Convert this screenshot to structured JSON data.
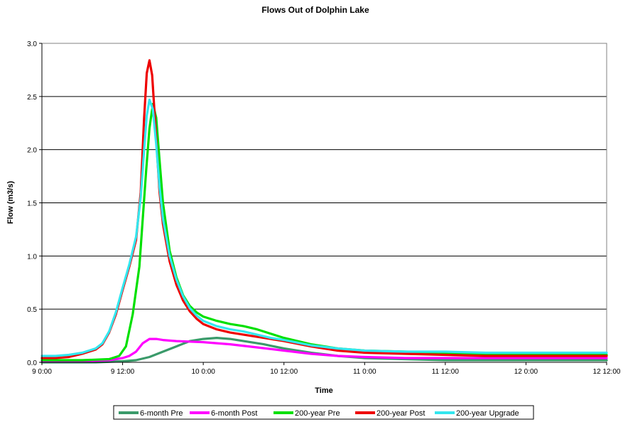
{
  "chart_data": {
    "type": "line",
    "title": "Flows Out of Dolphin Lake",
    "xlabel": "Time",
    "ylabel": "Flow (m3/s)",
    "x_unit": "hours",
    "xlim": [
      0,
      72
    ],
    "ylim": [
      0,
      3.0
    ],
    "x_ticks": [
      {
        "x": 0,
        "label": "9 0:00"
      },
      {
        "x": 12,
        "label": "9 12:00"
      },
      {
        "x": 24,
        "label": "10 0:00"
      },
      {
        "x": 36,
        "label": "10 12:00"
      },
      {
        "x": 48,
        "label": "11 0:00"
      },
      {
        "x": 60,
        "label": "11 12:00"
      },
      {
        "x": 72,
        "label": "12 0:00"
      },
      {
        "x": 84,
        "label": "12 12:00"
      }
    ],
    "y_ticks": [
      {
        "y": 0.0,
        "label": "0.0"
      },
      {
        "y": 0.5,
        "label": "0.5"
      },
      {
        "y": 1.0,
        "label": "1.0"
      },
      {
        "y": 1.5,
        "label": "1.5"
      },
      {
        "y": 2.0,
        "label": "2.0"
      },
      {
        "y": 2.5,
        "label": "2.5"
      },
      {
        "y": 3.0,
        "label": "3.0"
      }
    ],
    "grid": "horizontal",
    "legend_position": "bottom",
    "series": [
      {
        "name": "6-month Pre",
        "color": "#3a9a6a",
        "points": [
          [
            0,
            0.0
          ],
          [
            8,
            0.0
          ],
          [
            12,
            0.01
          ],
          [
            14,
            0.02
          ],
          [
            16,
            0.05
          ],
          [
            18,
            0.1
          ],
          [
            20,
            0.15
          ],
          [
            22,
            0.2
          ],
          [
            24,
            0.22
          ],
          [
            26,
            0.23
          ],
          [
            28,
            0.22
          ],
          [
            30,
            0.2
          ],
          [
            33,
            0.17
          ],
          [
            36,
            0.13
          ],
          [
            40,
            0.09
          ],
          [
            44,
            0.06
          ],
          [
            48,
            0.04
          ],
          [
            54,
            0.03
          ],
          [
            60,
            0.02
          ],
          [
            66,
            0.02
          ],
          [
            72,
            0.02
          ],
          [
            84,
            0.02
          ]
        ]
      },
      {
        "name": "6-month Post",
        "color": "#ff00ff",
        "points": [
          [
            0,
            0.01
          ],
          [
            6,
            0.01
          ],
          [
            10,
            0.02
          ],
          [
            12,
            0.04
          ],
          [
            13,
            0.06
          ],
          [
            14,
            0.1
          ],
          [
            15,
            0.18
          ],
          [
            16,
            0.22
          ],
          [
            17,
            0.22
          ],
          [
            18,
            0.21
          ],
          [
            20,
            0.2
          ],
          [
            24,
            0.19
          ],
          [
            28,
            0.17
          ],
          [
            32,
            0.14
          ],
          [
            36,
            0.11
          ],
          [
            40,
            0.08
          ],
          [
            44,
            0.06
          ],
          [
            48,
            0.05
          ],
          [
            54,
            0.04
          ],
          [
            60,
            0.04
          ],
          [
            66,
            0.04
          ],
          [
            72,
            0.04
          ],
          [
            84,
            0.04
          ]
        ]
      },
      {
        "name": "200-year Pre",
        "color": "#00e000",
        "points": [
          [
            0,
            0.02
          ],
          [
            6,
            0.02
          ],
          [
            10,
            0.03
          ],
          [
            11.5,
            0.06
          ],
          [
            12.5,
            0.15
          ],
          [
            13.5,
            0.45
          ],
          [
            14.5,
            0.9
          ],
          [
            15.5,
            1.8
          ],
          [
            16,
            2.2
          ],
          [
            16.5,
            2.43
          ],
          [
            17,
            2.3
          ],
          [
            17.5,
            1.9
          ],
          [
            18,
            1.5
          ],
          [
            19,
            1.05
          ],
          [
            20,
            0.8
          ],
          [
            21,
            0.63
          ],
          [
            22,
            0.53
          ],
          [
            23,
            0.47
          ],
          [
            24,
            0.43
          ],
          [
            26,
            0.39
          ],
          [
            28,
            0.36
          ],
          [
            30,
            0.34
          ],
          [
            32,
            0.31
          ],
          [
            34,
            0.27
          ],
          [
            36,
            0.23
          ],
          [
            40,
            0.17
          ],
          [
            44,
            0.13
          ],
          [
            48,
            0.11
          ],
          [
            54,
            0.1
          ],
          [
            60,
            0.09
          ],
          [
            66,
            0.08
          ],
          [
            72,
            0.07
          ],
          [
            84,
            0.07
          ]
        ]
      },
      {
        "name": "200-year Post",
        "color": "#ee0000",
        "points": [
          [
            0,
            0.04
          ],
          [
            2,
            0.04
          ],
          [
            4,
            0.05
          ],
          [
            6,
            0.08
          ],
          [
            8,
            0.12
          ],
          [
            9,
            0.17
          ],
          [
            10,
            0.28
          ],
          [
            11,
            0.45
          ],
          [
            12,
            0.68
          ],
          [
            13,
            0.9
          ],
          [
            14,
            1.15
          ],
          [
            14.7,
            1.6
          ],
          [
            15.2,
            2.3
          ],
          [
            15.6,
            2.72
          ],
          [
            16,
            2.84
          ],
          [
            16.4,
            2.7
          ],
          [
            17,
            2.1
          ],
          [
            17.5,
            1.6
          ],
          [
            18,
            1.3
          ],
          [
            19,
            0.95
          ],
          [
            20,
            0.73
          ],
          [
            21,
            0.58
          ],
          [
            22,
            0.48
          ],
          [
            23,
            0.41
          ],
          [
            24,
            0.36
          ],
          [
            26,
            0.31
          ],
          [
            28,
            0.28
          ],
          [
            30,
            0.26
          ],
          [
            32,
            0.24
          ],
          [
            34,
            0.22
          ],
          [
            36,
            0.2
          ],
          [
            40,
            0.15
          ],
          [
            44,
            0.11
          ],
          [
            48,
            0.09
          ],
          [
            54,
            0.08
          ],
          [
            60,
            0.07
          ],
          [
            66,
            0.06
          ],
          [
            72,
            0.06
          ],
          [
            84,
            0.06
          ]
        ]
      },
      {
        "name": "200-year Upgrade",
        "color": "#33e6ee",
        "points": [
          [
            0,
            0.06
          ],
          [
            2,
            0.06
          ],
          [
            4,
            0.07
          ],
          [
            6,
            0.09
          ],
          [
            8,
            0.13
          ],
          [
            9,
            0.18
          ],
          [
            10,
            0.29
          ],
          [
            11,
            0.47
          ],
          [
            12,
            0.7
          ],
          [
            13,
            0.92
          ],
          [
            14,
            1.18
          ],
          [
            14.7,
            1.55
          ],
          [
            15.2,
            2.0
          ],
          [
            15.6,
            2.32
          ],
          [
            16,
            2.47
          ],
          [
            16.5,
            2.38
          ],
          [
            17,
            2.05
          ],
          [
            17.5,
            1.65
          ],
          [
            18,
            1.35
          ],
          [
            19,
            1.0
          ],
          [
            20,
            0.78
          ],
          [
            21,
            0.62
          ],
          [
            22,
            0.51
          ],
          [
            23,
            0.44
          ],
          [
            24,
            0.39
          ],
          [
            26,
            0.34
          ],
          [
            28,
            0.31
          ],
          [
            30,
            0.29
          ],
          [
            32,
            0.26
          ],
          [
            34,
            0.23
          ],
          [
            36,
            0.21
          ],
          [
            40,
            0.16
          ],
          [
            44,
            0.13
          ],
          [
            48,
            0.11
          ],
          [
            54,
            0.1
          ],
          [
            60,
            0.1
          ],
          [
            66,
            0.09
          ],
          [
            72,
            0.09
          ],
          [
            84,
            0.09
          ]
        ]
      }
    ]
  }
}
